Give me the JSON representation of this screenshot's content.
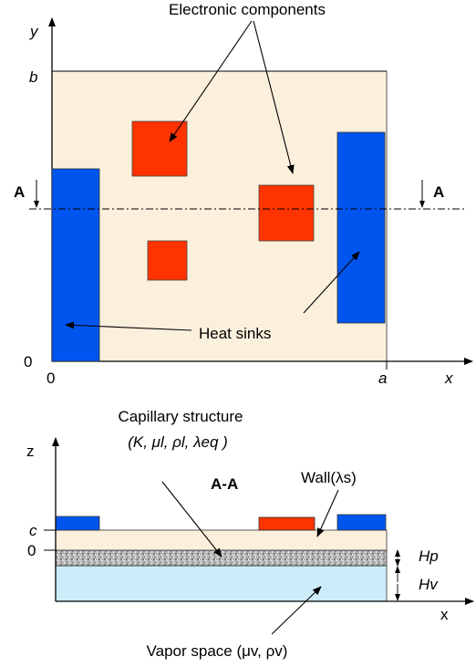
{
  "top_view": {
    "title_components": "Electronic components",
    "axis_y": "y",
    "axis_x": "x",
    "tick_b": "b",
    "tick_a": "a",
    "origin_x": "0",
    "origin_y": "0",
    "section_left": "A",
    "section_right": "A",
    "label_heat_sinks": "Heat sinks"
  },
  "section_view": {
    "title": "A-A",
    "axis_z": "z",
    "axis_x": "x",
    "tick_c": "c",
    "tick_0": "0",
    "capillary_line1": "Capillary structure",
    "capillary_line2": "(K, μl, ρl, λeq )",
    "wall_label": "Wall(λs)",
    "hp_label": "Hp",
    "hv_label": "Hv",
    "vapor_label": "Vapor space (μv, ρv)"
  },
  "colors": {
    "plate": "#fbf0dc",
    "component": "#ff3300",
    "heat_sink": "#0055ee",
    "vapor": "#cdecfa",
    "wick": "#a8a8a8"
  }
}
